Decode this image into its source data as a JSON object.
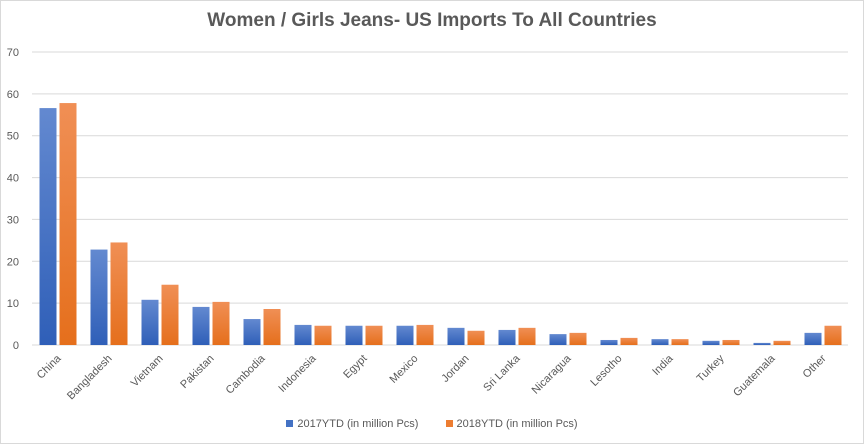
{
  "chart_data": {
    "type": "bar",
    "title": "Women / Girls Jeans- US Imports To All Countries",
    "xlabel": "",
    "ylabel": "",
    "ylim": [
      0,
      70
    ],
    "yticks": [
      0,
      10,
      20,
      30,
      40,
      50,
      60,
      70
    ],
    "grid": true,
    "legend_position": "bottom",
    "categories": [
      "China",
      "Bangladesh",
      "Vietnam",
      "Pakistan",
      "Cambodia",
      "Indonesia",
      "Egypt",
      "Mexico",
      "Jordan",
      "Sri Lanka",
      "Nicaragua",
      "Lesotho",
      "India",
      "Turkey",
      "Guatemala",
      "Other"
    ],
    "series": [
      {
        "name": "2017YTD (in million Pcs)",
        "color": "#4472c4",
        "values": [
          56.6,
          22.8,
          10.8,
          9.1,
          6.2,
          4.8,
          4.6,
          4.6,
          4.1,
          3.6,
          2.6,
          1.2,
          1.4,
          1.0,
          0.5,
          2.9
        ]
      },
      {
        "name": "2018YTD (in million Pcs)",
        "color": "#ed7d31",
        "values": [
          57.8,
          24.5,
          14.4,
          10.3,
          8.6,
          4.6,
          4.6,
          4.8,
          3.4,
          4.1,
          2.9,
          1.7,
          1.4,
          1.2,
          1.0,
          4.6
        ]
      }
    ]
  }
}
